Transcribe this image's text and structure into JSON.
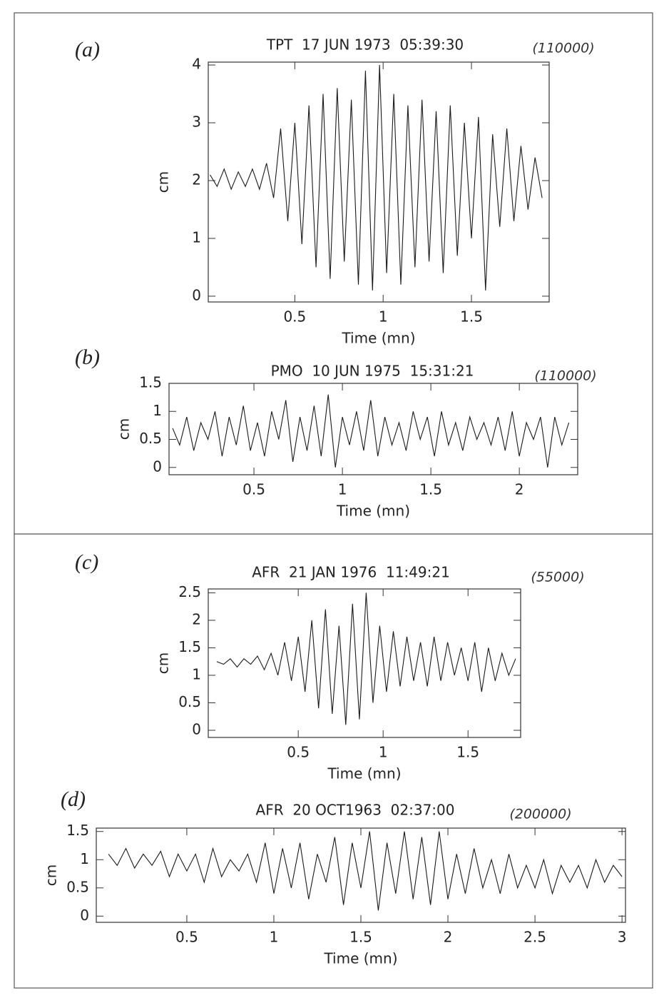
{
  "chart_data": [
    {
      "type": "line",
      "panel_label": "(a)",
      "title": "TPT  17 JUN 1973  05:39:30",
      "magnification": "(110000)",
      "xlabel": "Time (mn)",
      "ylabel": "cm",
      "color": "#1a1a1a",
      "xlim": [
        0.01,
        1.94
      ],
      "ylim": [
        -0.1,
        4.05
      ],
      "xticks": [
        0.5,
        1,
        1.5
      ],
      "yticks": [
        0,
        1,
        2,
        3,
        4
      ],
      "x": [
        0.02,
        0.06,
        0.1,
        0.14,
        0.18,
        0.22,
        0.26,
        0.3,
        0.34,
        0.38,
        0.42,
        0.46,
        0.5,
        0.54,
        0.58,
        0.62,
        0.66,
        0.7,
        0.74,
        0.78,
        0.82,
        0.86,
        0.9,
        0.94,
        0.98,
        1.02,
        1.06,
        1.1,
        1.14,
        1.18,
        1.22,
        1.26,
        1.3,
        1.34,
        1.38,
        1.42,
        1.46,
        1.5,
        1.54,
        1.58,
        1.62,
        1.66,
        1.7,
        1.74,
        1.78,
        1.82,
        1.86,
        1.9
      ],
      "values": [
        2.1,
        1.9,
        2.2,
        1.85,
        2.15,
        1.9,
        2.2,
        1.85,
        2.3,
        1.7,
        2.9,
        1.3,
        3.0,
        0.9,
        3.3,
        0.5,
        3.5,
        0.3,
        3.6,
        0.6,
        3.4,
        0.2,
        3.9,
        0.1,
        4.0,
        0.4,
        3.5,
        0.2,
        3.3,
        0.5,
        3.4,
        0.6,
        3.2,
        0.4,
        3.3,
        0.7,
        3.0,
        1.0,
        3.1,
        0.1,
        2.8,
        1.2,
        2.9,
        1.3,
        2.6,
        1.5,
        2.4,
        1.7
      ]
    },
    {
      "type": "line",
      "panel_label": "(b)",
      "title": "PMO  10 JUN 1975  15:31:21",
      "magnification": "(110000)",
      "xlabel": "Time (mn)",
      "ylabel": "cm",
      "color": "#1a1a1a",
      "xlim": [
        0.02,
        2.33
      ],
      "ylim": [
        -0.13,
        1.5
      ],
      "xticks": [
        0.5,
        1,
        1.5,
        2
      ],
      "yticks": [
        0,
        0.5,
        1,
        1.5
      ],
      "x": [
        0.04,
        0.08,
        0.12,
        0.16,
        0.2,
        0.24,
        0.28,
        0.32,
        0.36,
        0.4,
        0.44,
        0.48,
        0.52,
        0.56,
        0.6,
        0.64,
        0.68,
        0.72,
        0.76,
        0.8,
        0.84,
        0.88,
        0.92,
        0.96,
        1.0,
        1.04,
        1.08,
        1.12,
        1.16,
        1.2,
        1.24,
        1.28,
        1.32,
        1.36,
        1.4,
        1.44,
        1.48,
        1.52,
        1.56,
        1.6,
        1.64,
        1.68,
        1.72,
        1.76,
        1.8,
        1.84,
        1.88,
        1.92,
        1.96,
        2.0,
        2.04,
        2.08,
        2.12,
        2.16,
        2.2,
        2.24,
        2.28
      ],
      "values": [
        0.7,
        0.4,
        0.9,
        0.3,
        0.8,
        0.5,
        1.0,
        0.2,
        0.9,
        0.4,
        1.1,
        0.3,
        0.8,
        0.2,
        1.0,
        0.5,
        1.2,
        0.1,
        0.9,
        0.3,
        1.1,
        0.2,
        1.3,
        0.0,
        0.9,
        0.4,
        1.0,
        0.3,
        1.2,
        0.2,
        0.9,
        0.4,
        0.8,
        0.3,
        1.0,
        0.5,
        0.9,
        0.2,
        1.0,
        0.4,
        0.8,
        0.3,
        0.9,
        0.5,
        0.8,
        0.4,
        0.9,
        0.3,
        1.0,
        0.2,
        0.8,
        0.5,
        0.9,
        0.0,
        0.9,
        0.4,
        0.8
      ]
    },
    {
      "type": "line",
      "panel_label": "(c)",
      "title": "AFR  21 JAN 1976  11:49:21",
      "magnification": "(55000)",
      "xlabel": "Time (mn)",
      "ylabel": "cm",
      "color": "#1a1a1a",
      "xlim": [
        -0.03,
        1.81
      ],
      "ylim": [
        -0.13,
        2.57
      ],
      "xticks": [
        0.5,
        1,
        1.5
      ],
      "yticks": [
        0,
        0.5,
        1,
        1.5,
        2,
        2.5
      ],
      "x": [
        0.02,
        0.06,
        0.1,
        0.14,
        0.18,
        0.22,
        0.26,
        0.3,
        0.34,
        0.38,
        0.42,
        0.46,
        0.5,
        0.54,
        0.58,
        0.62,
        0.66,
        0.7,
        0.74,
        0.78,
        0.82,
        0.86,
        0.9,
        0.94,
        0.98,
        1.02,
        1.06,
        1.1,
        1.14,
        1.18,
        1.22,
        1.26,
        1.3,
        1.34,
        1.38,
        1.42,
        1.46,
        1.5,
        1.54,
        1.58,
        1.62,
        1.66,
        1.7,
        1.74,
        1.78
      ],
      "values": [
        1.25,
        1.2,
        1.3,
        1.15,
        1.3,
        1.2,
        1.35,
        1.1,
        1.4,
        1.0,
        1.6,
        0.9,
        1.7,
        0.7,
        2.0,
        0.4,
        2.2,
        0.3,
        1.9,
        0.1,
        2.3,
        0.2,
        2.5,
        0.5,
        1.9,
        0.7,
        1.8,
        0.8,
        1.7,
        0.9,
        1.6,
        0.8,
        1.7,
        0.9,
        1.6,
        1.0,
        1.5,
        0.9,
        1.6,
        0.7,
        1.5,
        0.9,
        1.4,
        1.0,
        1.3
      ]
    },
    {
      "type": "line",
      "panel_label": "(d)",
      "title": "AFR  20 OCT1963  02:37:00",
      "magnification": "(200000)",
      "xlabel": "Time (mn)",
      "ylabel": "cm",
      "color": "#1a1a1a",
      "xlim": [
        -0.02,
        3.02
      ],
      "ylim": [
        -0.11,
        1.56
      ],
      "xticks": [
        0.5,
        1,
        1.5,
        2,
        2.5,
        3
      ],
      "yticks": [
        0,
        0.5,
        1,
        1.5
      ],
      "x": [
        0.05,
        0.1,
        0.15,
        0.2,
        0.25,
        0.3,
        0.35,
        0.4,
        0.45,
        0.5,
        0.55,
        0.6,
        0.65,
        0.7,
        0.75,
        0.8,
        0.85,
        0.9,
        0.95,
        1.0,
        1.05,
        1.1,
        1.15,
        1.2,
        1.25,
        1.3,
        1.35,
        1.4,
        1.45,
        1.5,
        1.55,
        1.6,
        1.65,
        1.7,
        1.75,
        1.8,
        1.85,
        1.9,
        1.95,
        2.0,
        2.05,
        2.1,
        2.15,
        2.2,
        2.25,
        2.3,
        2.35,
        2.4,
        2.45,
        2.5,
        2.55,
        2.6,
        2.65,
        2.7,
        2.75,
        2.8,
        2.85,
        2.9,
        2.95,
        3.0
      ],
      "values": [
        1.1,
        0.9,
        1.2,
        0.85,
        1.1,
        0.9,
        1.15,
        0.7,
        1.1,
        0.8,
        1.1,
        0.6,
        1.2,
        0.7,
        1.0,
        0.8,
        1.1,
        0.6,
        1.3,
        0.4,
        1.2,
        0.5,
        1.3,
        0.3,
        1.1,
        0.6,
        1.4,
        0.2,
        1.3,
        0.5,
        1.5,
        0.1,
        1.3,
        0.4,
        1.5,
        0.3,
        1.4,
        0.2,
        1.5,
        0.3,
        1.1,
        0.4,
        1.2,
        0.5,
        1.0,
        0.4,
        1.1,
        0.5,
        0.9,
        0.5,
        1.0,
        0.4,
        0.9,
        0.6,
        0.9,
        0.5,
        1.0,
        0.6,
        0.9,
        0.7
      ]
    }
  ]
}
